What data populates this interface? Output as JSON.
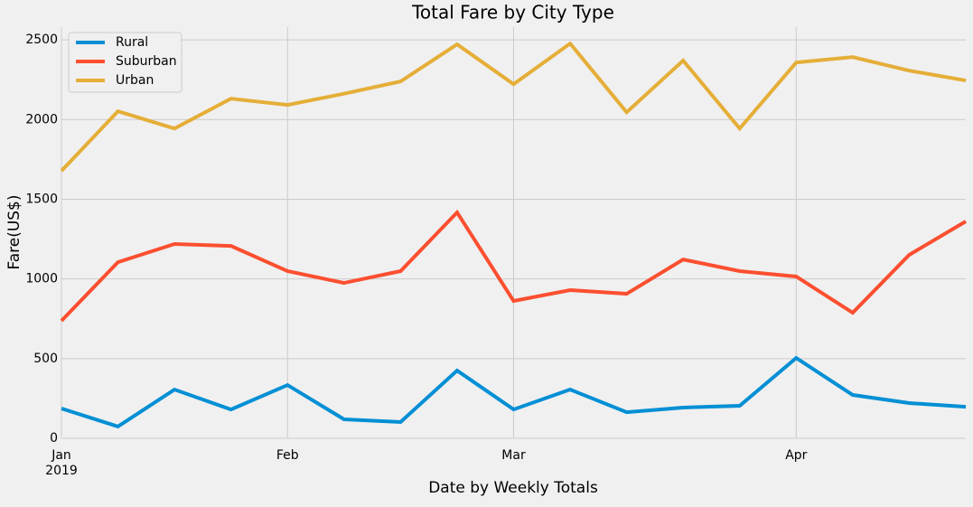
{
  "chart_data": {
    "type": "line",
    "title": "Total Fare by City Type",
    "x_label": "Date by Weekly Totals",
    "y_label": "Fare(US$)",
    "categories": [
      "Jan",
      null,
      null,
      null,
      "Feb",
      null,
      null,
      null,
      "Mar",
      null,
      null,
      null,
      null,
      "Apr",
      null,
      null,
      null
    ],
    "year_label": "2019",
    "series": [
      {
        "name": "Rural",
        "color": "#008fd5",
        "values": [
          187,
          74,
          306,
          181,
          334,
          119,
          102,
          425,
          181,
          306,
          164,
          193,
          204,
          504,
          272,
          221,
          198
        ]
      },
      {
        "name": "Suburban",
        "color": "#fc4f30",
        "values": [
          737,
          1105,
          1219,
          1207,
          1049,
          975,
          1049,
          1417,
          862,
          930,
          907,
          1122,
          1049,
          1015,
          788,
          1151,
          1361
        ]
      },
      {
        "name": "Urban",
        "color": "#e5ae38",
        "values": [
          1678,
          2052,
          1944,
          2131,
          2092,
          2162,
          2239,
          2472,
          2222,
          2477,
          2046,
          2370,
          1944,
          2358,
          2392,
          2307,
          2245
        ]
      }
    ],
    "ylim": [
      0,
      2580
    ],
    "yticks": [
      0,
      500,
      1000,
      1500,
      2000,
      2500
    ],
    "grid": true,
    "legend": "upper-left"
  }
}
